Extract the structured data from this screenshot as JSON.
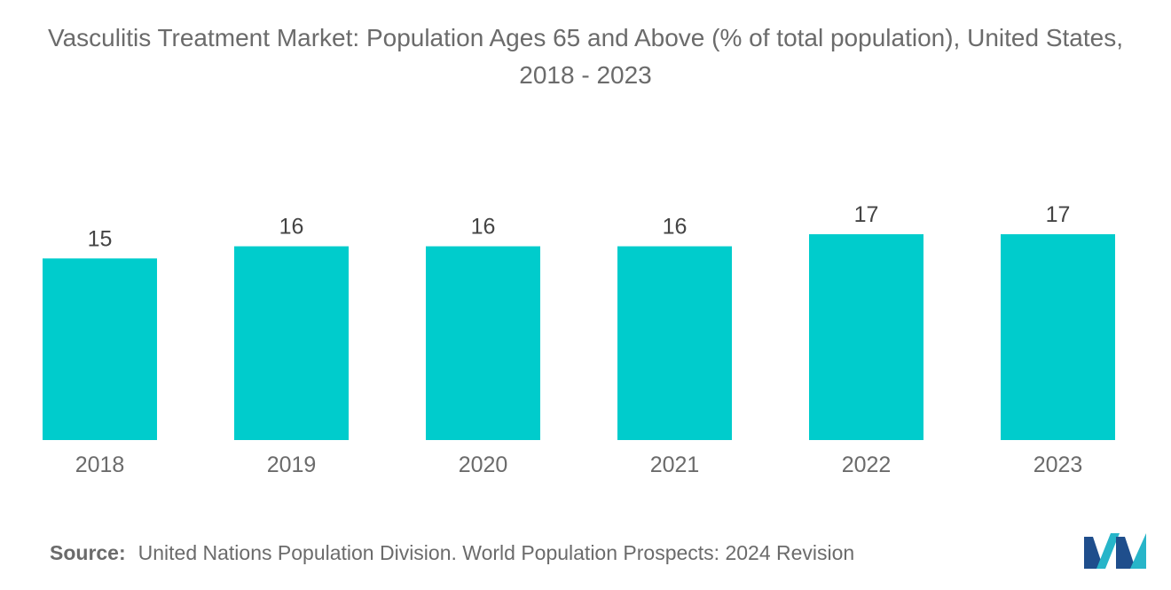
{
  "chart_data": {
    "type": "bar",
    "title": "Vasculitis Treatment Market: Population Ages 65 and Above (% of total population), United States, 2018 - 2023",
    "categories": [
      "2018",
      "2019",
      "2020",
      "2021",
      "2022",
      "2023"
    ],
    "values": [
      15,
      16,
      16,
      16,
      17,
      17
    ],
    "xlabel": "",
    "ylabel": "",
    "ylim": [
      0,
      17
    ],
    "grid": false,
    "legend": "none",
    "bar_color": "#00cccc"
  },
  "source": {
    "label": "Source:",
    "text": "United Nations Population Division. World Population Prospects: 2024 Revision"
  },
  "colors": {
    "text": "#6b6b6b",
    "logo_dark": "#1f4e8c",
    "logo_light": "#27b5c9"
  }
}
